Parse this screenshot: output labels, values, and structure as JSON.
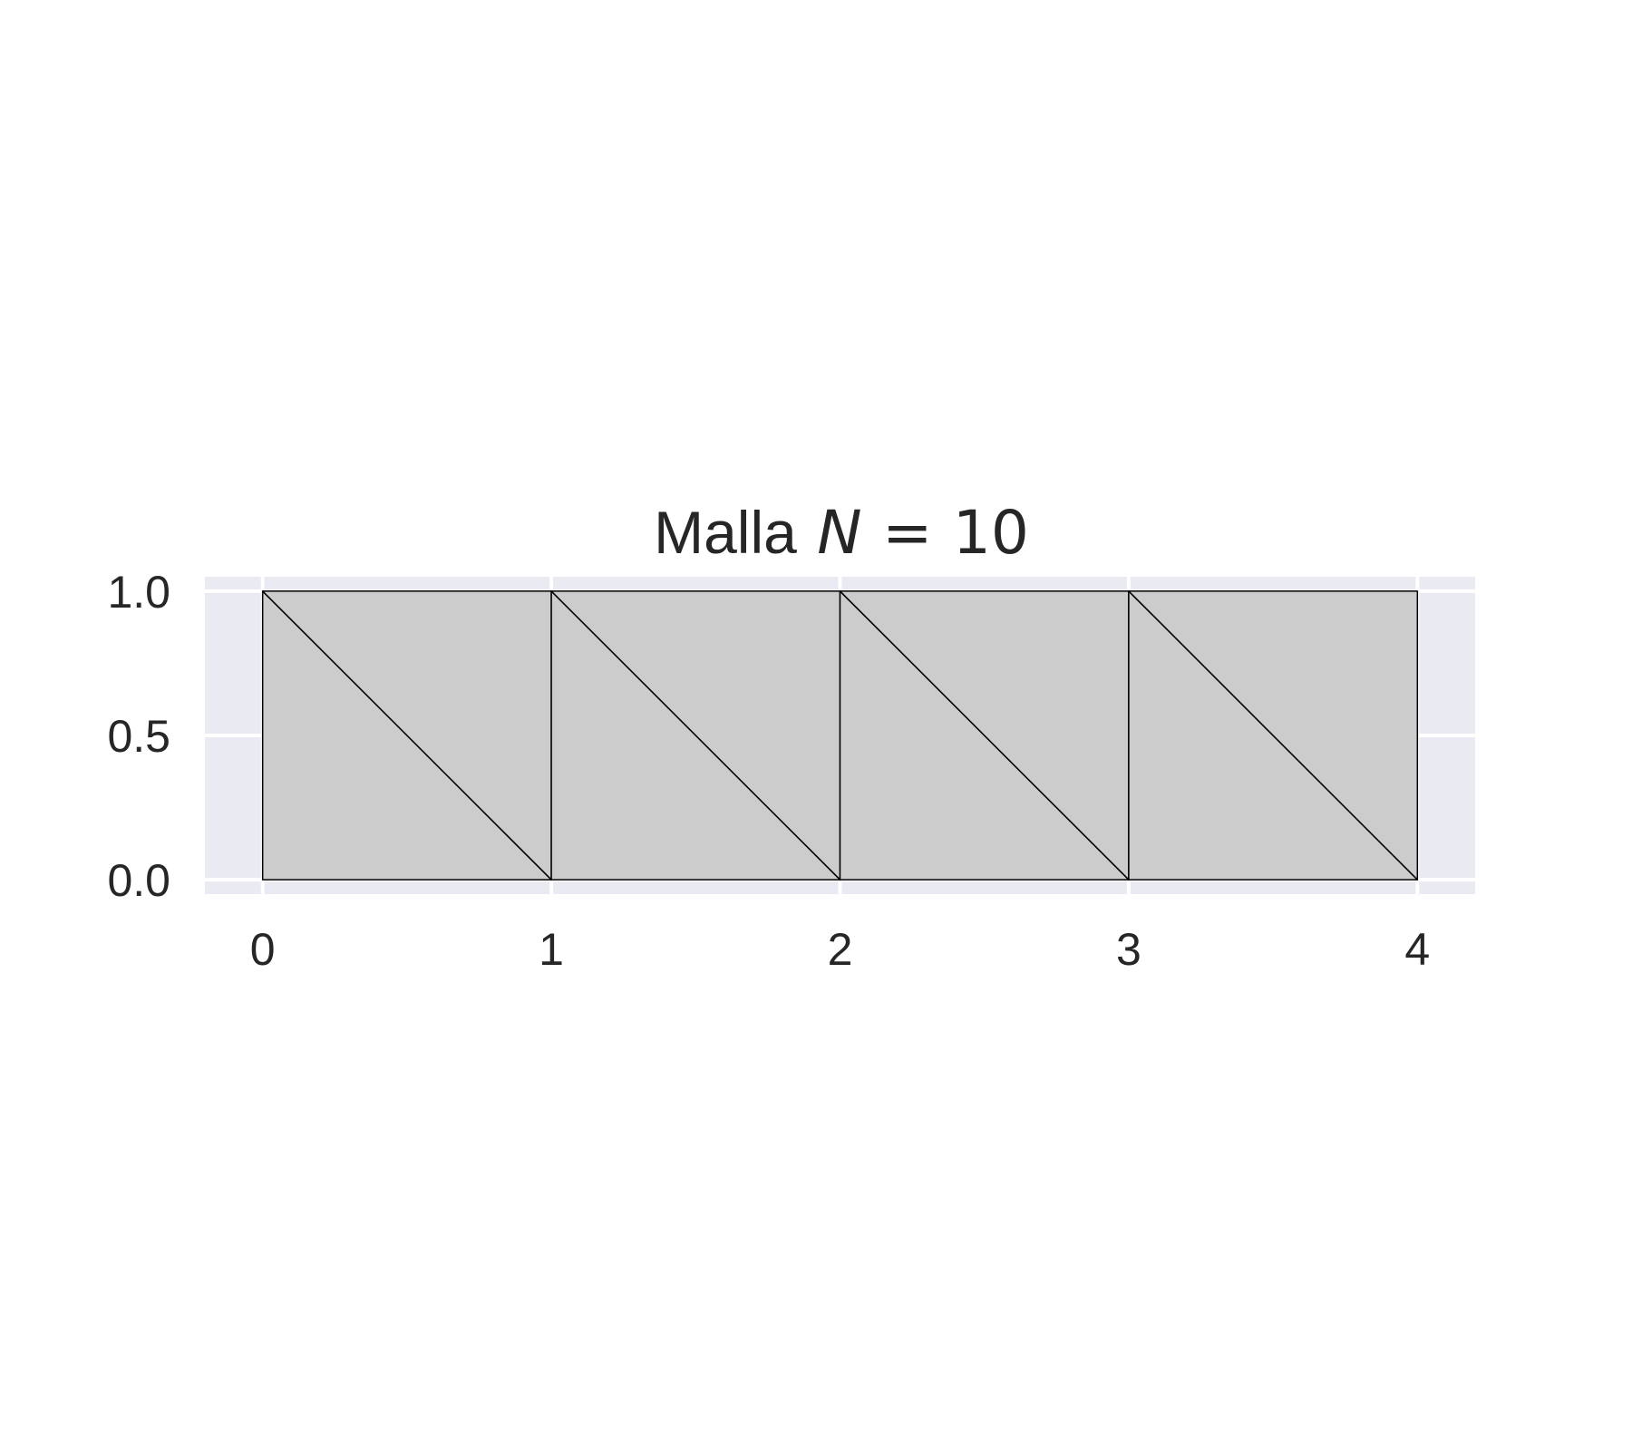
{
  "chart_data": {
    "type": "mesh",
    "title": {
      "prefix": "Malla",
      "variable": "N",
      "operator": "=",
      "value": "10"
    },
    "xlabel": "",
    "ylabel": "",
    "xlim": [
      -0.2,
      4.2
    ],
    "ylim": [
      -0.05,
      1.05
    ],
    "x_ticks": [
      0,
      1,
      2,
      3,
      4
    ],
    "x_tick_labels": [
      "0",
      "1",
      "2",
      "3",
      "4"
    ],
    "y_ticks": [
      0.0,
      0.5,
      1.0
    ],
    "y_tick_labels": [
      "0.0",
      "0.5",
      "1.0"
    ],
    "grid": true,
    "vertices": [
      [
        0,
        0
      ],
      [
        1,
        0
      ],
      [
        2,
        0
      ],
      [
        3,
        0
      ],
      [
        4,
        0
      ],
      [
        0,
        1
      ],
      [
        1,
        1
      ],
      [
        2,
        1
      ],
      [
        3,
        1
      ],
      [
        4,
        1
      ]
    ],
    "triangles": [
      [
        0,
        1,
        5
      ],
      [
        1,
        6,
        5
      ],
      [
        1,
        2,
        6
      ],
      [
        2,
        7,
        6
      ],
      [
        2,
        3,
        7
      ],
      [
        3,
        8,
        7
      ],
      [
        3,
        4,
        8
      ],
      [
        4,
        9,
        8
      ]
    ],
    "colors": {
      "axes_background": "#eaeaf2",
      "grid": "#ffffff",
      "triangle_fill": "#cccccc",
      "triangle_edge": "#000000",
      "text": "#262626"
    }
  }
}
